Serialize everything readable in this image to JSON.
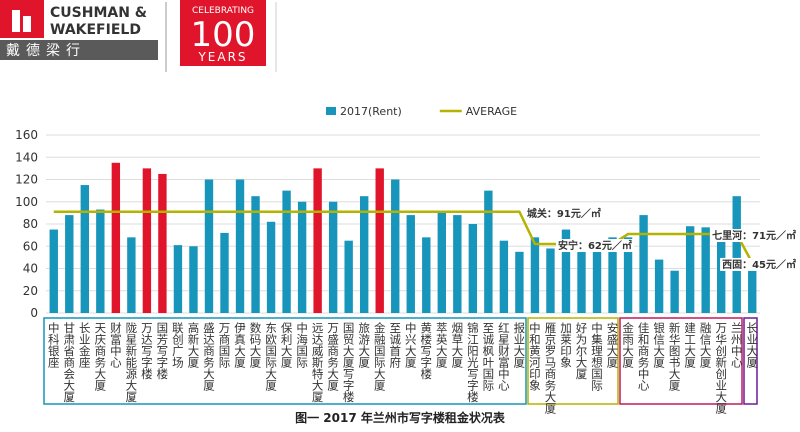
{
  "header": {
    "brand_lines": [
      "CUSHMAN &",
      "WAKEFIELD"
    ],
    "brand_cn": "戴德梁行",
    "badge_top": "CELEBRATING",
    "badge_number": "100",
    "badge_bottom": "YEARS"
  },
  "chart_data": {
    "type": "bar",
    "caption": "图一 2017 年兰州市写字楼租金状况表",
    "categories": [
      "中科银座",
      "甘肃省商会大厦",
      "长业金座",
      "天庆商务大厦",
      "财富中心",
      "陇星新能源大厦",
      "万达写字楼",
      "国芳写字楼",
      "联创广场",
      "高新大厦",
      "盛达商务大厦",
      "万商国际",
      "伊真大厦",
      "数码大厦",
      "东欧国际大厦",
      "保利大厦",
      "中海国际",
      "远达威斯特大厦",
      "万盛商务大厦",
      "国贸大厦写字楼",
      "旅游大厦",
      "金融国际大厦",
      "至诚首府",
      "中兴大厦",
      "黄楼写字楼",
      "萃英大厦",
      "烟草大厦",
      "锦江阳光写字楼",
      "至诚枫叶国际",
      "红星财富中心",
      "报业大厦",
      "中和黄河印象",
      "雁京罗马商务大厦",
      "加莱印象",
      "好为尔大厦",
      "中集理想国际",
      "安盛大厦",
      "金雨大厦",
      "佳和商务中心",
      "银信大厦",
      "新华图书大厦",
      "建工大厦",
      "融信大厦",
      "万华创新创业大厦",
      "兰州中心",
      "长业大厦"
    ],
    "series": [
      {
        "name": "2017(Rent)",
        "color": "#1795bb",
        "values": [
          75,
          88,
          115,
          93,
          135,
          68,
          130,
          125,
          61,
          60,
          120,
          72,
          120,
          105,
          82,
          110,
          100,
          130,
          100,
          65,
          105,
          130,
          120,
          88,
          68,
          90,
          88,
          80,
          110,
          65,
          55,
          68,
          58,
          75,
          60,
          65,
          68,
          68,
          88,
          48,
          38,
          78,
          77,
          68,
          105,
          45
        ],
        "colors": [
          "#1795bb",
          "#1795bb",
          "#1795bb",
          "#1795bb",
          "#e0142a",
          "#1795bb",
          "#e0142a",
          "#e0142a",
          "#1795bb",
          "#1795bb",
          "#1795bb",
          "#1795bb",
          "#1795bb",
          "#1795bb",
          "#1795bb",
          "#1795bb",
          "#1795bb",
          "#e0142a",
          "#1795bb",
          "#1795bb",
          "#1795bb",
          "#e0142a",
          "#1795bb",
          "#1795bb",
          "#1795bb",
          "#1795bb",
          "#1795bb",
          "#1795bb",
          "#1795bb",
          "#1795bb",
          "#1795bb",
          "#1795bb",
          "#1795bb",
          "#1795bb",
          "#1795bb",
          "#1795bb",
          "#1795bb",
          "#1795bb",
          "#1795bb",
          "#1795bb",
          "#1795bb",
          "#1795bb",
          "#1795bb",
          "#1795bb",
          "#1795bb",
          "#1795bb"
        ]
      },
      {
        "name": "AVERAGE",
        "color": "#b3b300",
        "type": "line",
        "values": [
          91,
          91,
          91,
          91,
          91,
          91,
          91,
          91,
          91,
          91,
          91,
          91,
          91,
          91,
          91,
          91,
          91,
          91,
          91,
          91,
          91,
          91,
          91,
          91,
          91,
          91,
          91,
          91,
          91,
          91,
          91,
          62,
          62,
          62,
          62,
          62,
          62,
          71,
          71,
          71,
          71,
          71,
          71,
          71,
          71,
          45
        ]
      }
    ],
    "annotations": [
      {
        "text": "城关：91元／㎡",
        "index": 31,
        "value": 91
      },
      {
        "text": "安宁：62元／㎡",
        "index": 33,
        "value": 62
      },
      {
        "text": "七里河：71元／㎡",
        "index": 44,
        "value": 71
      },
      {
        "text": "西固：45元／㎡",
        "index": 45,
        "value": 45
      }
    ],
    "ylim": [
      0,
      160
    ],
    "yticks": [
      0,
      20,
      40,
      60,
      80,
      100,
      120,
      140,
      160
    ],
    "grid": true
  }
}
